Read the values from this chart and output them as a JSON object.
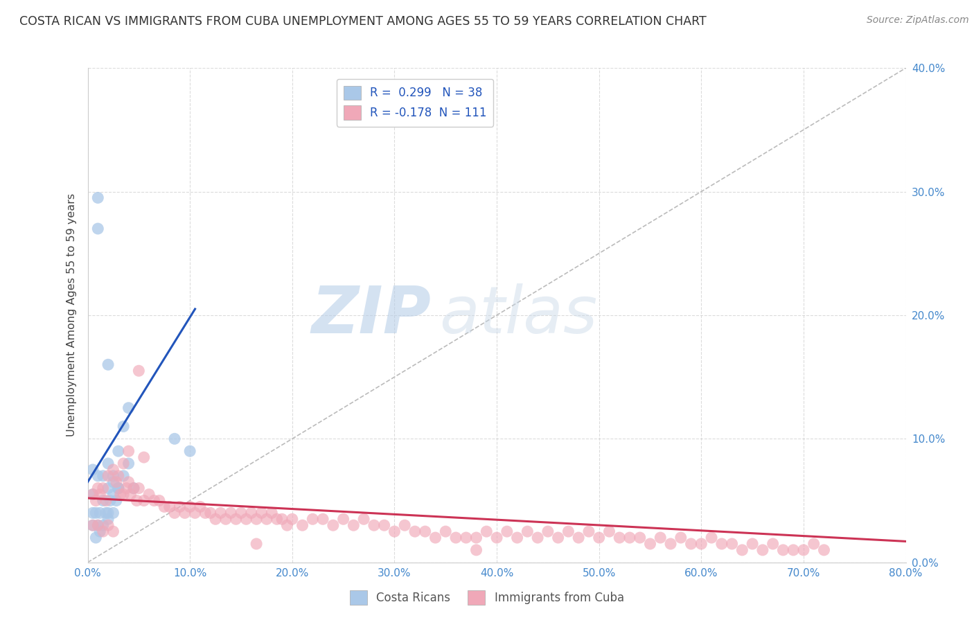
{
  "title": "COSTA RICAN VS IMMIGRANTS FROM CUBA UNEMPLOYMENT AMONG AGES 55 TO 59 YEARS CORRELATION CHART",
  "source": "Source: ZipAtlas.com",
  "ylabel": "Unemployment Among Ages 55 to 59 years",
  "xlim": [
    0.0,
    0.8
  ],
  "ylim": [
    0.0,
    0.4
  ],
  "xticks": [
    0.0,
    0.1,
    0.2,
    0.3,
    0.4,
    0.5,
    0.6,
    0.7,
    0.8
  ],
  "yticks": [
    0.0,
    0.1,
    0.2,
    0.3,
    0.4
  ],
  "blue_color": "#aac8e8",
  "blue_line_color": "#2255bb",
  "pink_color": "#f0a8b8",
  "pink_line_color": "#cc3355",
  "blue_R": 0.299,
  "blue_N": 38,
  "pink_R": -0.178,
  "pink_N": 111,
  "watermark_zip": "ZIP",
  "watermark_atlas": "atlas",
  "blue_line_x1": 0.0,
  "blue_line_y1": 0.065,
  "blue_line_x2": 0.105,
  "blue_line_y2": 0.205,
  "pink_line_x1": 0.0,
  "pink_line_y1": 0.052,
  "pink_line_x2": 0.8,
  "pink_line_y2": 0.017,
  "blue_scatter_x": [
    0.005,
    0.01,
    0.01,
    0.02,
    0.025,
    0.025,
    0.03,
    0.03,
    0.035,
    0.04,
    0.005,
    0.01,
    0.015,
    0.02,
    0.02,
    0.025,
    0.03,
    0.035,
    0.04,
    0.045,
    0.005,
    0.008,
    0.012,
    0.015,
    0.018,
    0.02,
    0.022,
    0.025,
    0.028,
    0.03,
    0.005,
    0.008,
    0.01,
    0.012,
    0.015,
    0.02,
    0.085,
    0.1
  ],
  "blue_scatter_y": [
    0.075,
    0.295,
    0.27,
    0.16,
    0.04,
    0.065,
    0.06,
    0.09,
    0.11,
    0.125,
    0.055,
    0.07,
    0.07,
    0.08,
    0.06,
    0.07,
    0.06,
    0.07,
    0.08,
    0.06,
    0.04,
    0.04,
    0.04,
    0.05,
    0.04,
    0.04,
    0.05,
    0.055,
    0.05,
    0.06,
    0.03,
    0.02,
    0.03,
    0.025,
    0.03,
    0.035,
    0.1,
    0.09
  ],
  "pink_scatter_x": [
    0.005,
    0.008,
    0.01,
    0.012,
    0.015,
    0.018,
    0.02,
    0.025,
    0.028,
    0.03,
    0.032,
    0.035,
    0.038,
    0.04,
    0.042,
    0.045,
    0.048,
    0.05,
    0.055,
    0.06,
    0.065,
    0.07,
    0.075,
    0.08,
    0.085,
    0.09,
    0.095,
    0.1,
    0.105,
    0.11,
    0.115,
    0.12,
    0.125,
    0.13,
    0.135,
    0.14,
    0.145,
    0.15,
    0.155,
    0.16,
    0.165,
    0.17,
    0.175,
    0.18,
    0.185,
    0.19,
    0.195,
    0.2,
    0.21,
    0.22,
    0.23,
    0.24,
    0.25,
    0.26,
    0.27,
    0.28,
    0.29,
    0.3,
    0.31,
    0.32,
    0.33,
    0.34,
    0.35,
    0.36,
    0.37,
    0.38,
    0.39,
    0.4,
    0.41,
    0.42,
    0.43,
    0.44,
    0.45,
    0.46,
    0.47,
    0.48,
    0.49,
    0.5,
    0.51,
    0.52,
    0.53,
    0.54,
    0.55,
    0.56,
    0.57,
    0.58,
    0.59,
    0.6,
    0.61,
    0.62,
    0.63,
    0.64,
    0.65,
    0.66,
    0.67,
    0.68,
    0.69,
    0.7,
    0.71,
    0.72,
    0.035,
    0.04,
    0.05,
    0.055,
    0.165,
    0.38,
    0.005,
    0.01,
    0.015,
    0.02,
    0.025
  ],
  "pink_scatter_y": [
    0.055,
    0.05,
    0.06,
    0.055,
    0.06,
    0.05,
    0.07,
    0.075,
    0.065,
    0.07,
    0.055,
    0.055,
    0.06,
    0.065,
    0.055,
    0.06,
    0.05,
    0.06,
    0.05,
    0.055,
    0.05,
    0.05,
    0.045,
    0.045,
    0.04,
    0.045,
    0.04,
    0.045,
    0.04,
    0.045,
    0.04,
    0.04,
    0.035,
    0.04,
    0.035,
    0.04,
    0.035,
    0.04,
    0.035,
    0.04,
    0.035,
    0.04,
    0.035,
    0.04,
    0.035,
    0.035,
    0.03,
    0.035,
    0.03,
    0.035,
    0.035,
    0.03,
    0.035,
    0.03,
    0.035,
    0.03,
    0.03,
    0.025,
    0.03,
    0.025,
    0.025,
    0.02,
    0.025,
    0.02,
    0.02,
    0.02,
    0.025,
    0.02,
    0.025,
    0.02,
    0.025,
    0.02,
    0.025,
    0.02,
    0.025,
    0.02,
    0.025,
    0.02,
    0.025,
    0.02,
    0.02,
    0.02,
    0.015,
    0.02,
    0.015,
    0.02,
    0.015,
    0.015,
    0.02,
    0.015,
    0.015,
    0.01,
    0.015,
    0.01,
    0.015,
    0.01,
    0.01,
    0.01,
    0.015,
    0.01,
    0.08,
    0.09,
    0.155,
    0.085,
    0.015,
    0.01,
    0.03,
    0.03,
    0.025,
    0.03,
    0.025
  ]
}
